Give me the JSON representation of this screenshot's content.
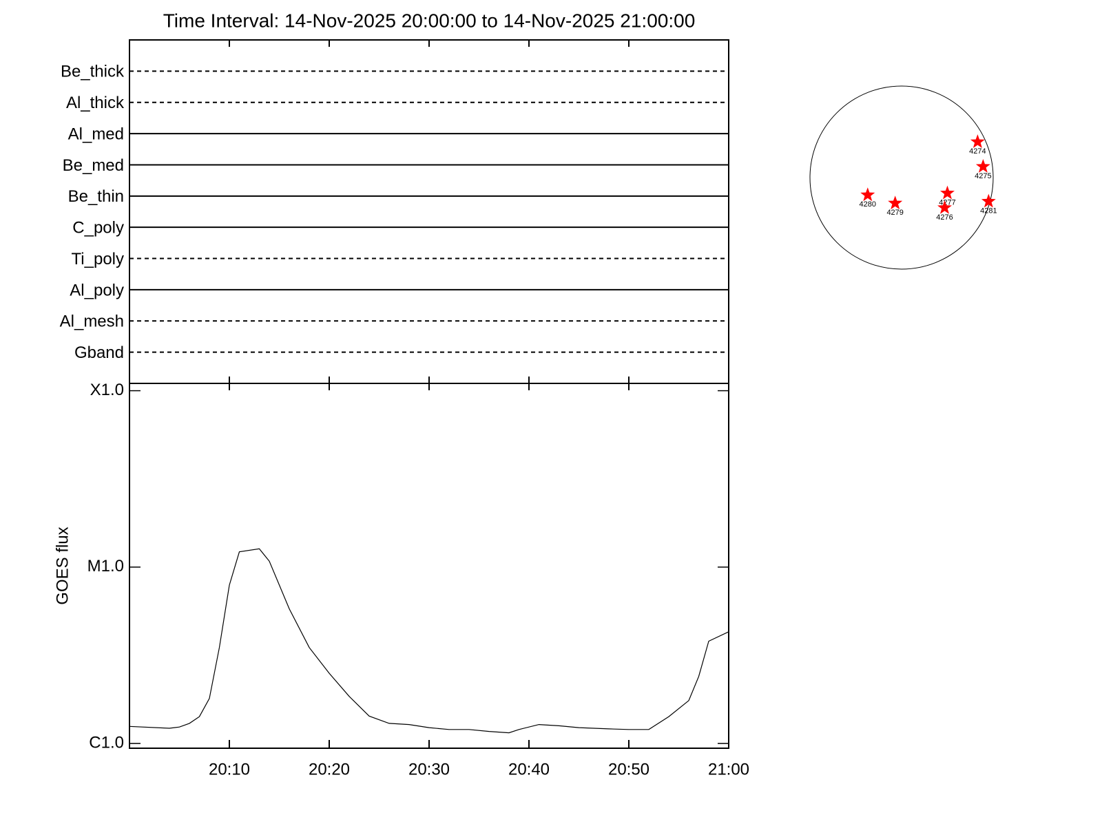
{
  "chart_data": [
    {
      "type": "filters",
      "title": "Time Interval: 14-Nov-2025 20:00:00 to 14-Nov-2025 21:00:00",
      "categories": [
        "Be_thick",
        "Al_thick",
        "Al_med",
        "Be_med",
        "Be_thin",
        "C_poly",
        "Ti_poly",
        "Al_poly",
        "Al_mesh",
        "Gband"
      ],
      "styles": [
        "dashed",
        "dashed",
        "solid",
        "solid",
        "solid",
        "solid",
        "dashed",
        "solid",
        "dashed",
        "dashed"
      ],
      "color": "#000000"
    },
    {
      "type": "line",
      "y_label": "GOES flux",
      "color": "#000000",
      "log_scale": true,
      "x": [
        "20:00",
        "20:04",
        "20:05",
        "20:06",
        "20:07",
        "20:08",
        "20:09",
        "20:10",
        "20:11",
        "20:13",
        "20:14",
        "20:16",
        "20:18",
        "20:20",
        "20:22",
        "20:24",
        "20:26",
        "20:28",
        "20:30",
        "20:32",
        "20:34",
        "20:36",
        "20:38",
        "20:39",
        "20:41",
        "20:43",
        "20:45",
        "20:48",
        "20:50",
        "20:52",
        "20:54",
        "20:56",
        "20:57",
        "20:58",
        "21:00"
      ],
      "values": [
        1.25e-06,
        1.22e-06,
        1.24e-06,
        1.3e-06,
        1.42e-06,
        1.8e-06,
        3.5e-06,
        7.9e-06,
        1.22e-05,
        1.27e-05,
        1.08e-05,
        5.8e-06,
        3.5e-06,
        2.5e-06,
        1.85e-06,
        1.43e-06,
        1.3e-06,
        1.28e-06,
        1.23e-06,
        1.2e-06,
        1.2e-06,
        1.17e-06,
        1.15e-06,
        1.2e-06,
        1.28e-06,
        1.26e-06,
        1.23e-06,
        1.21e-06,
        1.2e-06,
        1.2e-06,
        1.42e-06,
        1.75e-06,
        2.4e-06,
        3.8e-06,
        4.3e-06
      ],
      "xlim": [
        "20:00",
        "21:00"
      ],
      "xticks": [
        "20:10",
        "20:20",
        "20:30",
        "20:40",
        "20:50",
        "21:00"
      ],
      "ylim": [
        9.4e-07,
        0.00011
      ],
      "yticks": [
        {
          "value": 1e-06,
          "label": "C1.0"
        },
        {
          "value": 1e-05,
          "label": "M1.0"
        },
        {
          "value": 0.0001,
          "label": "X1.0"
        }
      ]
    },
    {
      "type": "disk",
      "color": "#ff0000",
      "labels": [
        "4274",
        "4275",
        "4277",
        "4276",
        "4281",
        "4280",
        "4279"
      ],
      "x": [
        0.83,
        0.89,
        0.5,
        0.47,
        0.95,
        -0.37,
        -0.07
      ],
      "y": [
        0.39,
        0.12,
        -0.17,
        -0.33,
        -0.26,
        -0.19,
        -0.28
      ],
      "xlim": [
        -1,
        1
      ],
      "ylim": [
        -1,
        1
      ]
    }
  ]
}
